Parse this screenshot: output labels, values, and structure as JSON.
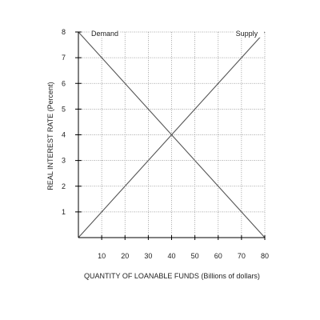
{
  "chart_data": {
    "type": "line",
    "xlabel": "QUANTITY OF LOANABLE FUNDS (Billions of dollars)",
    "ylabel": "REAL INTEREST RATE (Percent)",
    "xlim": [
      0,
      80
    ],
    "ylim": [
      0,
      8
    ],
    "x_ticks": [
      10,
      20,
      30,
      40,
      50,
      60,
      70,
      80
    ],
    "y_ticks": [
      1,
      2,
      3,
      4,
      5,
      6,
      7,
      8
    ],
    "grid": true,
    "series": [
      {
        "name": "Demand",
        "x": [
          0,
          80
        ],
        "y": [
          8,
          0
        ],
        "color": "#555555"
      },
      {
        "name": "Supply",
        "x": [
          0,
          80
        ],
        "y": [
          0,
          8
        ],
        "color": "#555555"
      }
    ],
    "colors": {
      "axis": "#000000",
      "grid": "#888888",
      "line": "#555555"
    }
  }
}
